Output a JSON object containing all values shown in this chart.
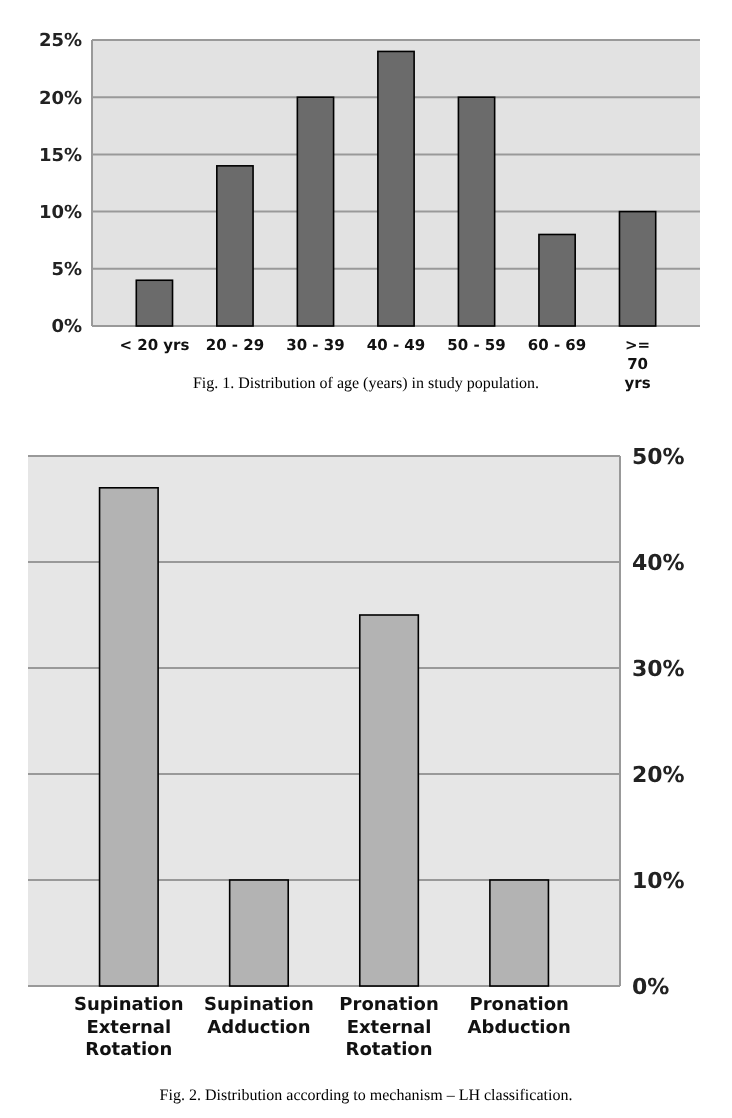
{
  "chart_data": [
    {
      "type": "bar",
      "categories": [
        "< 20 yrs",
        "20 - 29",
        "30 - 39",
        "40 - 49",
        "50 - 59",
        "60 - 69",
        ">= 70 yrs"
      ],
      "values": [
        4,
        14,
        20,
        24,
        20,
        8,
        10
      ],
      "color": "#6b6b6b",
      "ylim": [
        0,
        25
      ],
      "yticks": [
        {
          "value": 0,
          "label": "0%"
        },
        {
          "value": 5,
          "label": "5%"
        },
        {
          "value": 10,
          "label": "10%"
        },
        {
          "value": 15,
          "label": "15%"
        },
        {
          "value": 20,
          "label": "20%"
        },
        {
          "value": 25,
          "label": "25%"
        }
      ],
      "grid": true,
      "annotations": [
        "Fig. 1. Distribution of age (years) in study population."
      ]
    },
    {
      "type": "bar",
      "categories": [
        "Supination External Rotation",
        "Supination Adduction",
        "Pronation External Rotation",
        "Pronation Abduction"
      ],
      "values": [
        47,
        10,
        35,
        10
      ],
      "color": "#b3b3b3",
      "ylim": [
        0,
        50
      ],
      "yticks": [
        {
          "value": 0,
          "label": "0%"
        },
        {
          "value": 10,
          "label": "10%"
        },
        {
          "value": 20,
          "label": "20%"
        },
        {
          "value": 30,
          "label": "30%"
        },
        {
          "value": 40,
          "label": "40%"
        },
        {
          "value": 50,
          "label": "50%"
        }
      ],
      "grid": true,
      "annotations": [
        "Fig. 2. Distribution according to mechanism – LH classification."
      ]
    }
  ]
}
